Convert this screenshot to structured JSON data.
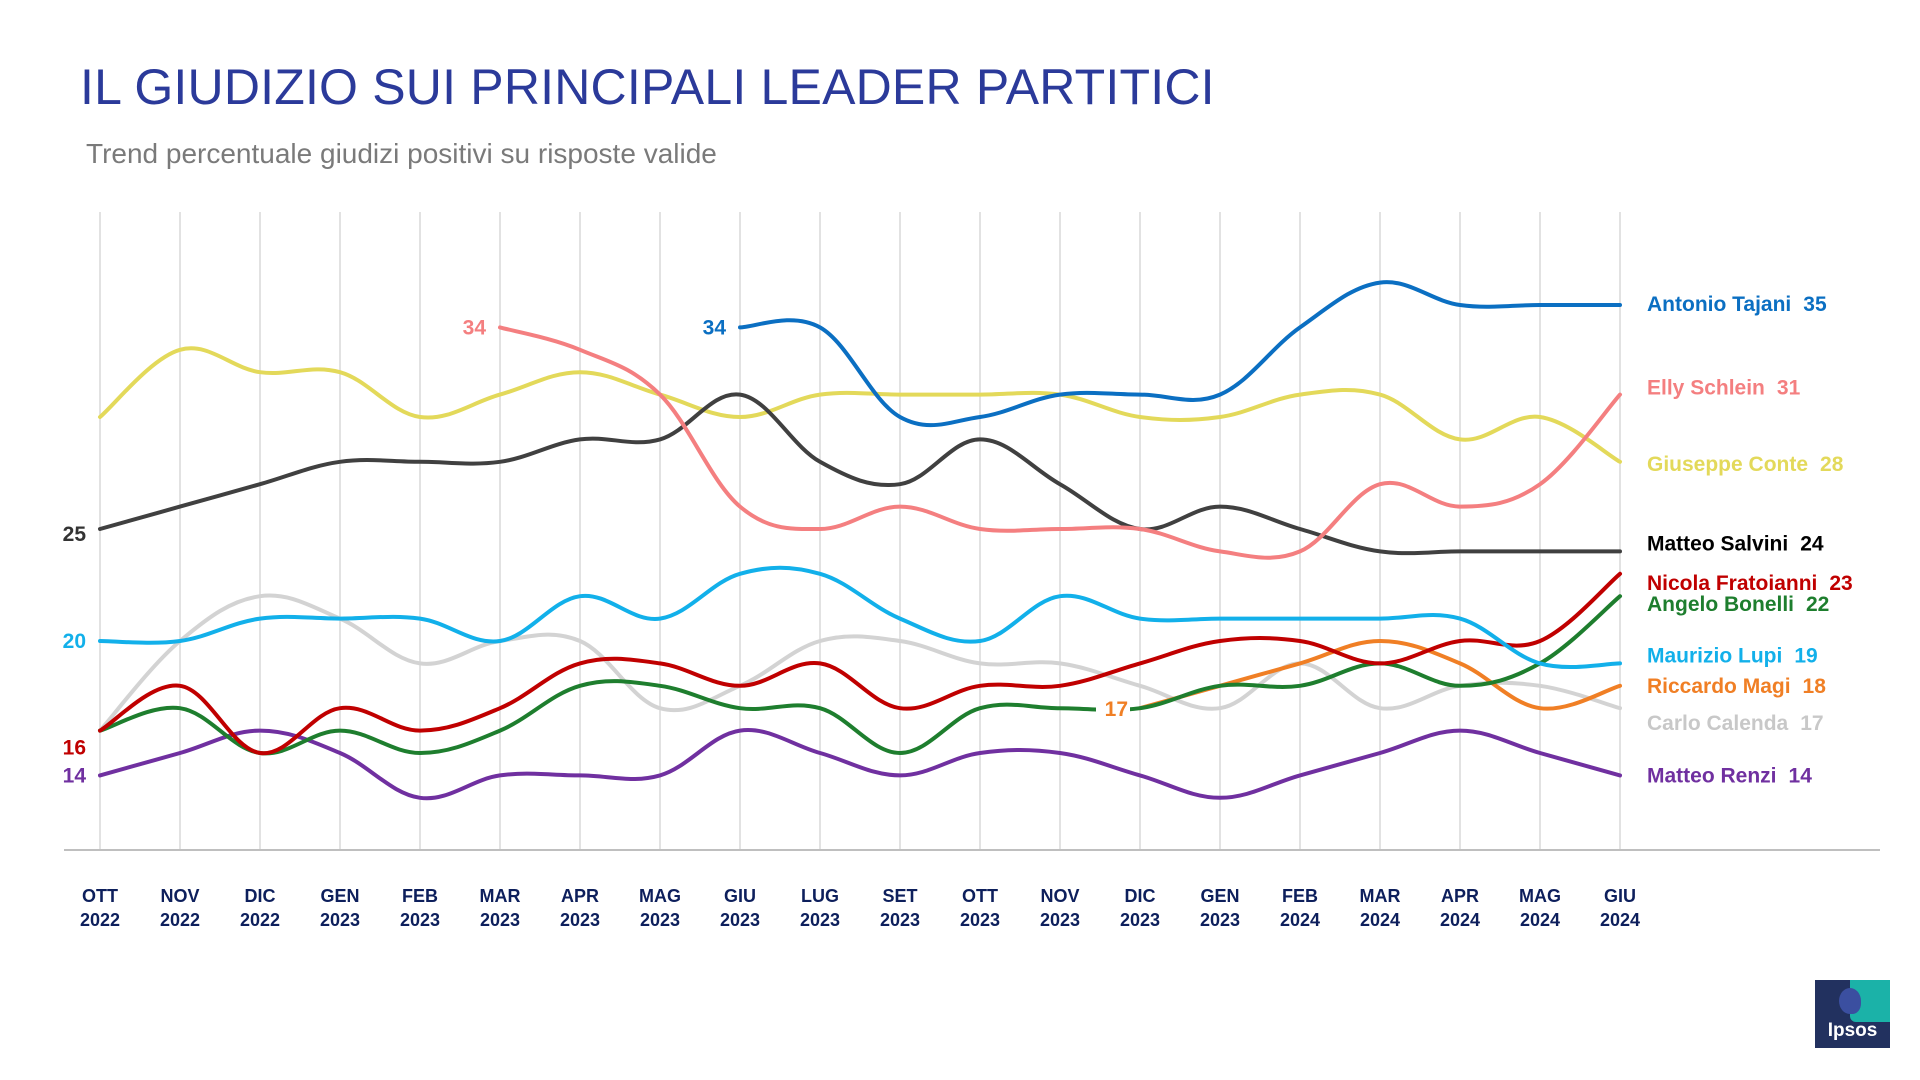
{
  "page": {
    "title": "IL GIUDIZIO SUI PRINCIPALI LEADER PARTITICI",
    "subtitle": "Trend percentuale giudizi positivi su risposte valide",
    "logo_text": "Ipsos"
  },
  "chart_data": {
    "type": "line",
    "title": "IL GIUDIZIO SUI PRINCIPALI LEADER PARTITICI",
    "subtitle": "Trend percentuale giudizi positivi su risposte valide",
    "xlabel": "",
    "ylabel": "",
    "ylim": [
      11,
      39
    ],
    "grid": "vertical",
    "legend": "right (end labels)",
    "x": [
      [
        "OTT",
        "2022"
      ],
      [
        "NOV",
        "2022"
      ],
      [
        "DIC",
        "2022"
      ],
      [
        "GEN",
        "2023"
      ],
      [
        "FEB",
        "2023"
      ],
      [
        "MAR",
        "2023"
      ],
      [
        "APR",
        "2023"
      ],
      [
        "MAG",
        "2023"
      ],
      [
        "GIU",
        "2023"
      ],
      [
        "LUG",
        "2023"
      ],
      [
        "SET",
        "2023"
      ],
      [
        "OTT",
        "2023"
      ],
      [
        "NOV",
        "2023"
      ],
      [
        "DIC",
        "2023"
      ],
      [
        "GEN",
        "2023"
      ],
      [
        "FEB",
        "2024"
      ],
      [
        "MAR",
        "2024"
      ],
      [
        "APR",
        "2024"
      ],
      [
        "MAG",
        "2024"
      ],
      [
        "GIU",
        "2024"
      ]
    ],
    "series": [
      {
        "name": "Antonio Tajani",
        "color": "#0b6fc2",
        "end_label": "35",
        "start_label": "34",
        "start_label_color": "#0b6fc2",
        "values": [
          null,
          null,
          null,
          null,
          null,
          null,
          null,
          null,
          34,
          34,
          30,
          30,
          31,
          31,
          31,
          34,
          36,
          35,
          35,
          35
        ]
      },
      {
        "name": "Elly Schlein",
        "color": "#f47f80",
        "end_label": "31",
        "start_label": "34",
        "start_label_color": "#f47f80",
        "values": [
          null,
          null,
          null,
          null,
          null,
          34,
          33,
          31,
          26,
          25,
          26,
          25,
          25,
          25,
          24,
          24,
          27,
          26,
          27,
          31
        ]
      },
      {
        "name": "Giuseppe Conte",
        "color": "#e3d95a",
        "end_label": "28",
        "values": [
          30,
          33,
          32,
          32,
          30,
          31,
          32,
          31,
          30,
          31,
          31,
          31,
          31,
          30,
          30,
          31,
          31,
          29,
          30,
          28
        ]
      },
      {
        "name": "Matteo Salvini",
        "color": "#404040",
        "end_label": "24",
        "label_color": "#000000",
        "start_label": "25",
        "start_label_color": "#333333",
        "values": [
          25,
          26,
          27,
          28,
          28,
          28,
          29,
          29,
          31,
          28,
          27,
          29,
          27,
          25,
          26,
          25,
          24,
          24,
          24,
          24
        ]
      },
      {
        "name": "Nicola Fratoianni",
        "color": "#c00000",
        "end_label": "23",
        "values": [
          16,
          18,
          15,
          17,
          16,
          17,
          19,
          19,
          18,
          19,
          17,
          18,
          18,
          19,
          20,
          20,
          19,
          20,
          20,
          23
        ]
      },
      {
        "name": "Angelo Bonelli",
        "color": "#1e7e2e",
        "end_label": "22",
        "values": [
          16,
          17,
          15,
          16,
          15,
          16,
          18,
          18,
          17,
          17,
          15,
          17,
          17,
          17,
          18,
          18,
          19,
          18,
          19,
          22
        ]
      },
      {
        "name": "Maurizio Lupi",
        "color": "#12b0ea",
        "end_label": "19",
        "start_label": "20",
        "start_label_color": "#12b0ea",
        "values": [
          20,
          20,
          21,
          21,
          21,
          20,
          22,
          21,
          23,
          23,
          21,
          20,
          22,
          21,
          21,
          21,
          21,
          21,
          19,
          19
        ]
      },
      {
        "name": "Riccardo Magi",
        "color": "#f07f25",
        "end_label": "18",
        "start_label": "17",
        "start_label_color": "#f07f25",
        "values": [
          null,
          null,
          null,
          null,
          null,
          null,
          null,
          null,
          null,
          null,
          null,
          null,
          null,
          17,
          18,
          19,
          20,
          19,
          17,
          18
        ]
      },
      {
        "name": "Carlo Calenda",
        "color": "#d3d3d3",
        "end_label": "17",
        "label_color": "#c8c8c8",
        "values": [
          16,
          20,
          22,
          21,
          19,
          20,
          20,
          17,
          18,
          20,
          20,
          19,
          19,
          18,
          17,
          19,
          17,
          18,
          18,
          17
        ]
      },
      {
        "name": "Matteo Renzi",
        "color": "#7030a0",
        "end_label": "14",
        "start_label": "14",
        "start_label_color": "#7030a0",
        "values": [
          14,
          15,
          16,
          15,
          13,
          14,
          14,
          14,
          16,
          15,
          14,
          15,
          15,
          14,
          13,
          14,
          15,
          16,
          15,
          14
        ]
      }
    ],
    "extra_labels": [
      {
        "text": "16",
        "series": "Nicola Fratoianni",
        "index": 0,
        "color": "#c00000"
      }
    ]
  }
}
